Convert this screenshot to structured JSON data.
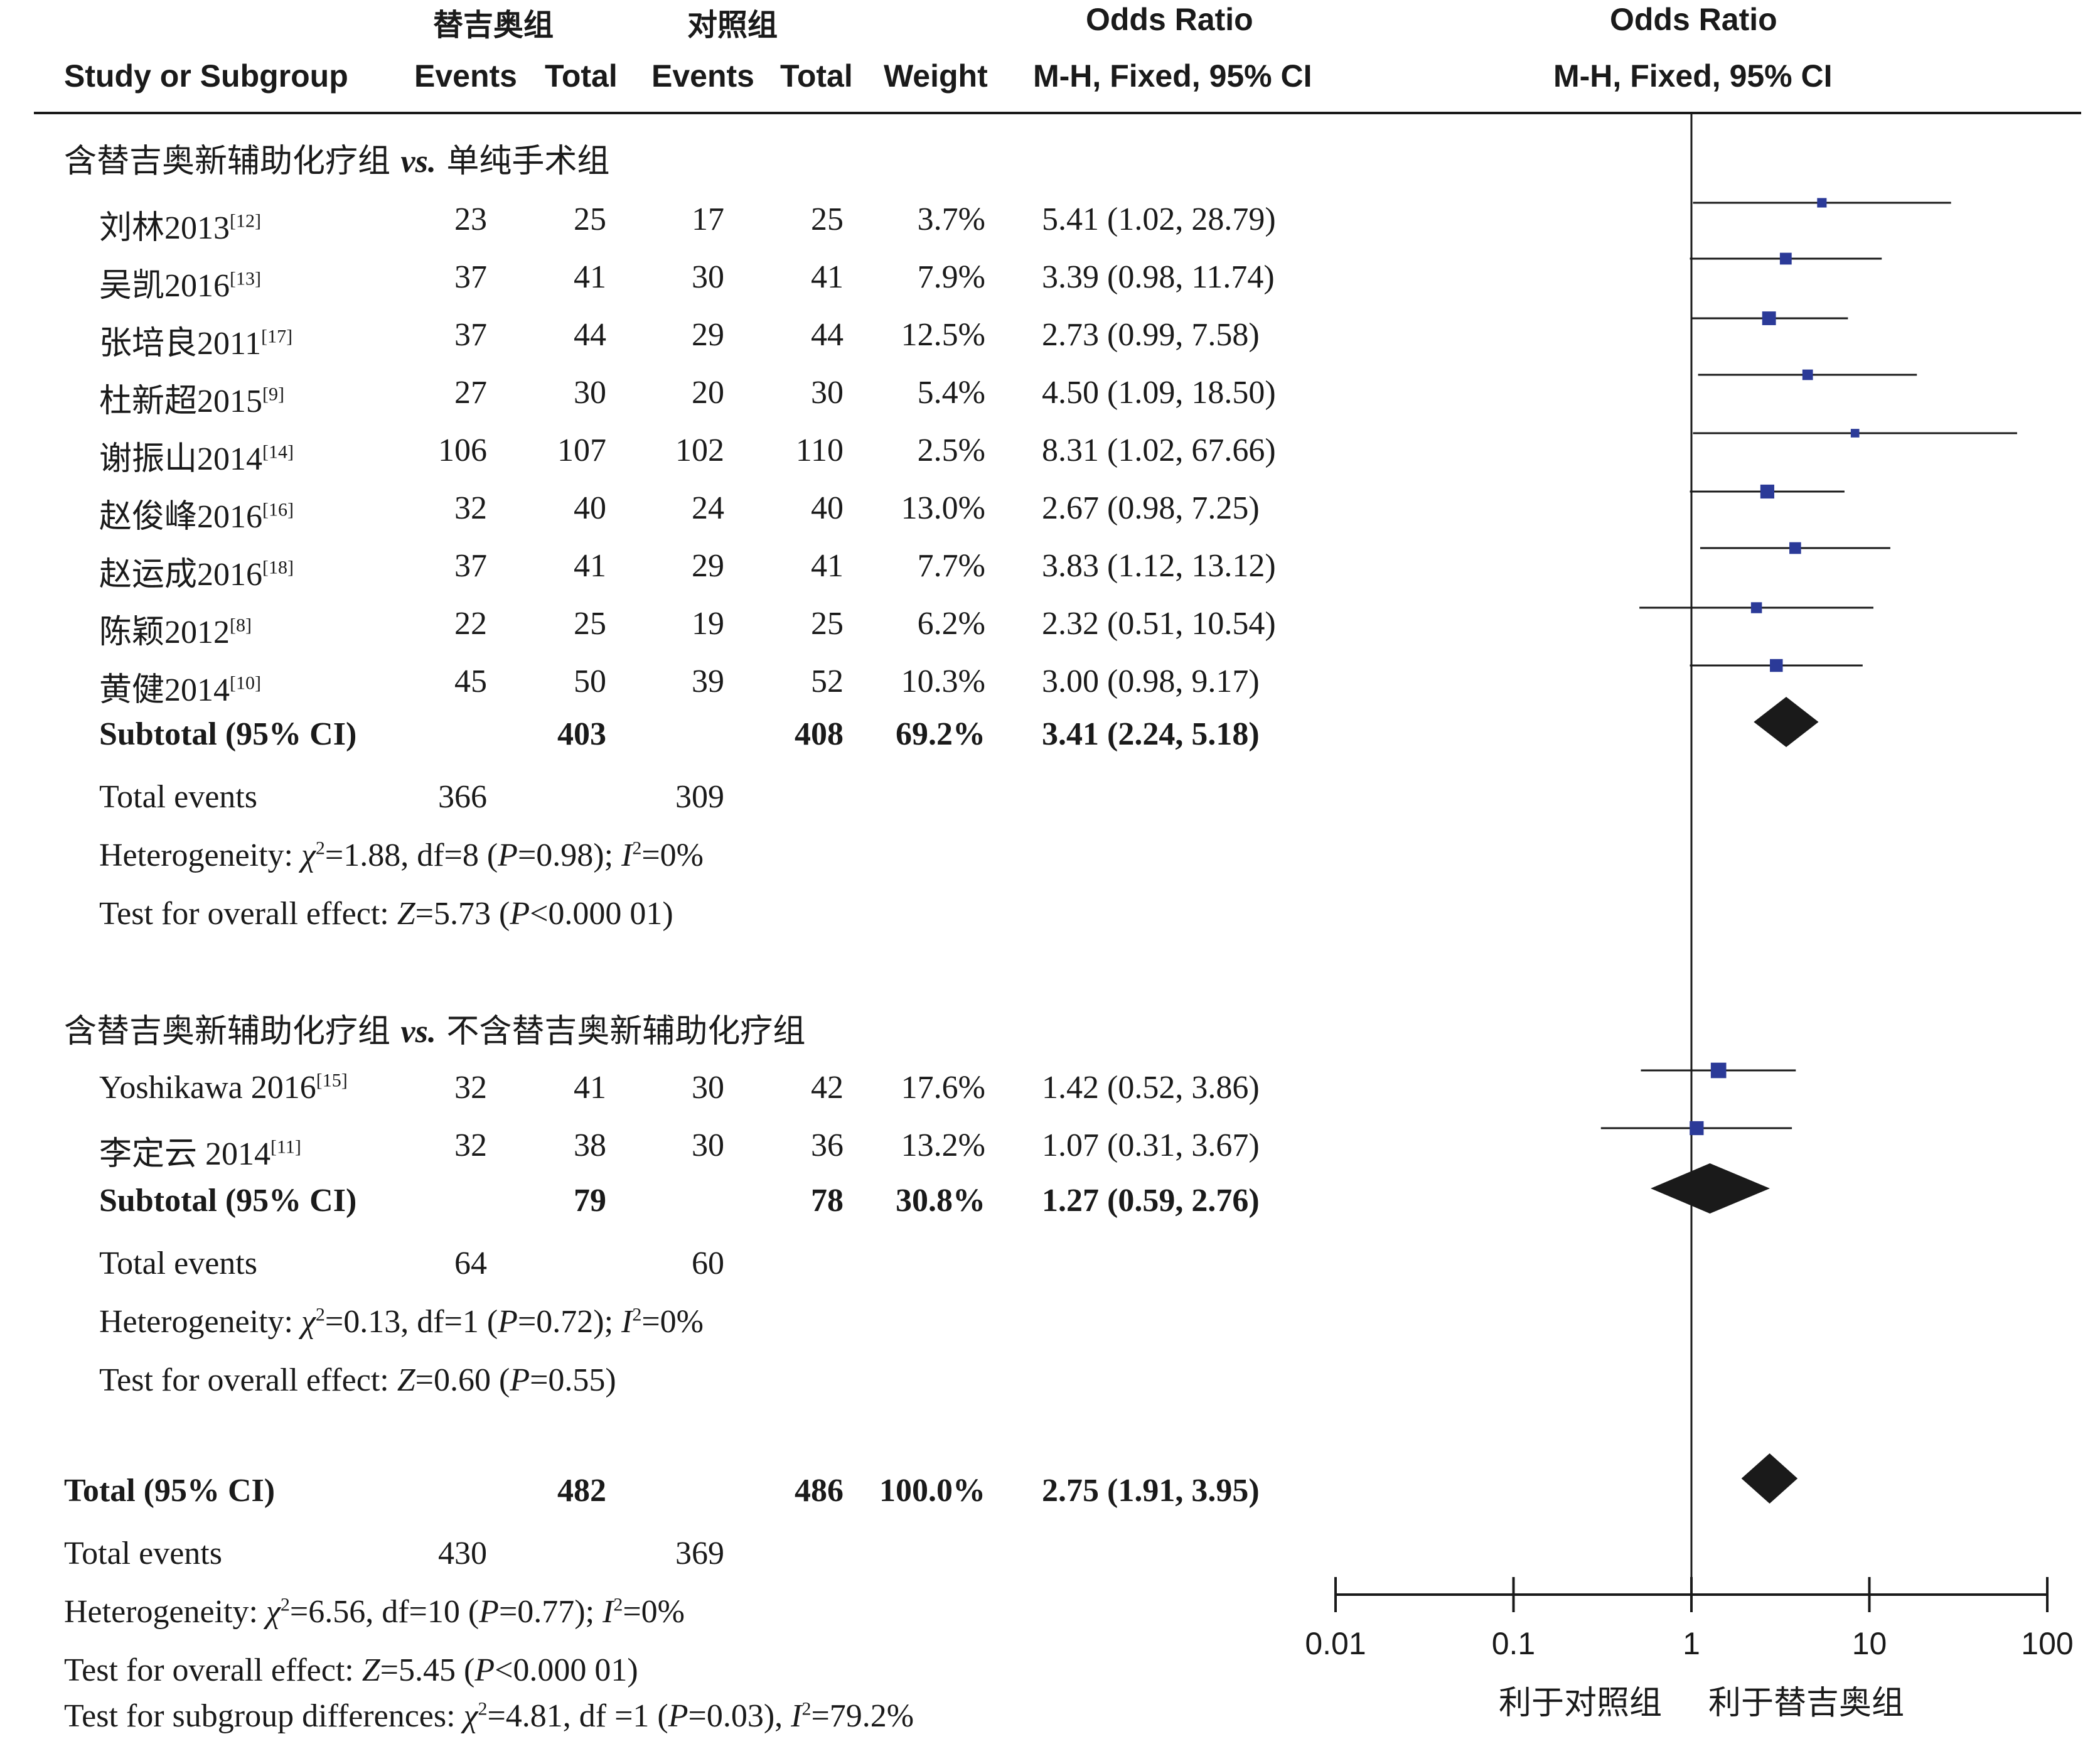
{
  "header": {
    "group_treat": "替吉奥组",
    "group_ctrl": "对照组",
    "or_title": "Odds Ratio",
    "or_title_plot": "Odds Ratio",
    "study_col": "Study or Subgroup",
    "events1": "Events",
    "total1": "Total",
    "events2": "Events",
    "total2": "Total",
    "weight": "Weight",
    "method": "M-H, Fixed, 95% CI",
    "method_plot": "M-H, Fixed, 95% CI"
  },
  "subgroup1": {
    "title_pre": "含替吉奥新辅助化疗组 ",
    "title_vs": "vs.",
    "title_post": " 单纯手术组",
    "subtotal": {
      "label": "Subtotal (95% CI)",
      "total1": "403",
      "total2": "408",
      "weight": "69.2%",
      "ci": "3.41 (2.24, 5.18)"
    },
    "total_events": {
      "label": "Total events",
      "e1": "366",
      "e2": "309"
    },
    "heterogeneity": {
      "prefix": "Heterogeneity: ",
      "chi": "χ",
      "chi_exp": "2",
      "chi_val": "=1.88, df=8 (",
      "p": "P",
      "p_val": "=0.98); ",
      "i": "I",
      "i_exp": "2",
      "i_val": "=0%"
    },
    "overall": {
      "prefix": "Test for overall effect: ",
      "z": "Z",
      "z_val": "=5.73 (",
      "p": "P",
      "p_val": "<0.000 01)"
    }
  },
  "subgroup2": {
    "title_pre": "含替吉奥新辅助化疗组 ",
    "title_vs": "vs.",
    "title_post": " 不含替吉奥新辅助化疗组",
    "subtotal": {
      "label": "Subtotal (95% CI)",
      "total1": "79",
      "total2": "78",
      "weight": "30.8%",
      "ci": "1.27 (0.59, 2.76)"
    },
    "total_events": {
      "label": "Total events",
      "e1": "64",
      "e2": "60"
    },
    "heterogeneity": {
      "prefix": "Heterogeneity: ",
      "chi": "χ",
      "chi_exp": "2",
      "chi_val": "=0.13, df=1 (",
      "p": "P",
      "p_val": "=0.72); ",
      "i": "I",
      "i_exp": "2",
      "i_val": "=0%"
    },
    "overall": {
      "prefix": "Test for overall effect: ",
      "z": "Z",
      "z_val": "=0.60 (",
      "p": "P",
      "p_val": "=0.55)"
    }
  },
  "overall": {
    "total": {
      "label": "Total (95% CI)",
      "total1": "482",
      "total2": "486",
      "weight": "100.0%",
      "ci": "2.75 (1.91, 3.95)"
    },
    "total_events": {
      "label": "Total events",
      "e1": "430",
      "e2": "369"
    },
    "heterogeneity": {
      "prefix": "Heterogeneity: ",
      "chi": "χ",
      "chi_exp": "2",
      "chi_val": "=6.56, df=10 (",
      "p": "P",
      "p_val": "=0.77); ",
      "i": "I",
      "i_exp": "2",
      "i_val": "=0%"
    },
    "overall": {
      "prefix": "Test for overall effect: ",
      "z": "Z",
      "z_val": "=5.45 (",
      "p": "P",
      "p_val": "<0.000 01)"
    },
    "subgroup_diff": {
      "prefix": "Test for subgroup differences: ",
      "chi": "χ",
      "chi_exp": "2",
      "chi_val": "=4.81, df =1 (",
      "p": "P",
      "p_val": "=0.03), ",
      "i": "I",
      "i_exp": "2",
      "i_val": "=79.2%"
    }
  },
  "axis": {
    "favours_left": "利于对照组",
    "favours_right": "利于替吉奥组"
  },
  "colors": {
    "study_marker": "#2b3a98",
    "diamond": "#1a1a1a",
    "line": "#1a1a1a"
  },
  "chart_data": {
    "type": "forest",
    "x_scale": "log",
    "xlim": [
      0.01,
      100
    ],
    "x_ticks": [
      "0.01",
      "0.1",
      "1",
      "10",
      "100"
    ],
    "null_line": 1,
    "studies": [
      {
        "name": "刘林2013",
        "ref": "[12]",
        "group": 1,
        "e1": "23",
        "t1": "25",
        "e2": "17",
        "t2": "25",
        "weight": "3.7%",
        "ci_text": "5.41 (1.02, 28.79)",
        "or": 5.41,
        "lo": 1.02,
        "hi": 28.79,
        "w": 3.7
      },
      {
        "name": "吴凯2016",
        "ref": "[13]",
        "group": 1,
        "e1": "37",
        "t1": "41",
        "e2": "30",
        "t2": "41",
        "weight": "7.9%",
        "ci_text": "3.39 (0.98, 11.74)",
        "or": 3.39,
        "lo": 0.98,
        "hi": 11.74,
        "w": 7.9
      },
      {
        "name": "张培良2011",
        "ref": "[17]",
        "group": 1,
        "e1": "37",
        "t1": "44",
        "e2": "29",
        "t2": "44",
        "weight": "12.5%",
        "ci_text": "2.73 (0.99, 7.58)",
        "or": 2.73,
        "lo": 0.99,
        "hi": 7.58,
        "w": 12.5
      },
      {
        "name": "杜新超2015",
        "ref": "[9]",
        "group": 1,
        "e1": "27",
        "t1": "30",
        "e2": "20",
        "t2": "30",
        "weight": "5.4%",
        "ci_text": "4.50 (1.09, 18.50)",
        "or": 4.5,
        "lo": 1.09,
        "hi": 18.5,
        "w": 5.4
      },
      {
        "name": "谢振山2014",
        "ref": "[14]",
        "group": 1,
        "e1": "106",
        "t1": "107",
        "e2": "102",
        "t2": "110",
        "weight": "2.5%",
        "ci_text": "8.31 (1.02, 67.66)",
        "or": 8.31,
        "lo": 1.02,
        "hi": 67.66,
        "w": 2.5
      },
      {
        "name": "赵俊峰2016",
        "ref": "[16]",
        "group": 1,
        "e1": "32",
        "t1": "40",
        "e2": "24",
        "t2": "40",
        "weight": "13.0%",
        "ci_text": "2.67 (0.98, 7.25)",
        "or": 2.67,
        "lo": 0.98,
        "hi": 7.25,
        "w": 13.0
      },
      {
        "name": "赵运成2016",
        "ref": "[18]",
        "group": 1,
        "e1": "37",
        "t1": "41",
        "e2": "29",
        "t2": "41",
        "weight": "7.7%",
        "ci_text": "3.83 (1.12, 13.12)",
        "or": 3.83,
        "lo": 1.12,
        "hi": 13.12,
        "w": 7.7
      },
      {
        "name": "陈颖2012",
        "ref": "[8]",
        "group": 1,
        "e1": "22",
        "t1": "25",
        "e2": "19",
        "t2": "25",
        "weight": "6.2%",
        "ci_text": "2.32 (0.51, 10.54)",
        "or": 2.32,
        "lo": 0.51,
        "hi": 10.54,
        "w": 6.2
      },
      {
        "name": "黄健2014",
        "ref": "[10]",
        "group": 1,
        "e1": "45",
        "t1": "50",
        "e2": "39",
        "t2": "52",
        "weight": "10.3%",
        "ci_text": "3.00 (0.98, 9.17)",
        "or": 3.0,
        "lo": 0.98,
        "hi": 9.17,
        "w": 10.3
      },
      {
        "name": "Yoshikawa 2016",
        "ref": "[15]",
        "group": 2,
        "e1": "32",
        "t1": "41",
        "e2": "30",
        "t2": "42",
        "weight": "17.6%",
        "ci_text": "1.42 (0.52, 3.86)",
        "or": 1.42,
        "lo": 0.52,
        "hi": 3.86,
        "w": 17.6
      },
      {
        "name": "李定云 2014",
        "ref": "[11]",
        "group": 2,
        "e1": "32",
        "t1": "38",
        "e2": "30",
        "t2": "36",
        "weight": "13.2%",
        "ci_text": "1.07 (0.31, 3.67)",
        "or": 1.07,
        "lo": 0.31,
        "hi": 3.67,
        "w": 13.2
      }
    ],
    "summaries": [
      {
        "label": "Subtotal (95% CI)",
        "group": 1,
        "or": 3.41,
        "lo": 2.24,
        "hi": 5.18
      },
      {
        "label": "Subtotal (95% CI)",
        "group": 2,
        "or": 1.27,
        "lo": 0.59,
        "hi": 2.76
      },
      {
        "label": "Total (95% CI)",
        "group": 0,
        "or": 2.75,
        "lo": 1.91,
        "hi": 3.95
      }
    ]
  }
}
